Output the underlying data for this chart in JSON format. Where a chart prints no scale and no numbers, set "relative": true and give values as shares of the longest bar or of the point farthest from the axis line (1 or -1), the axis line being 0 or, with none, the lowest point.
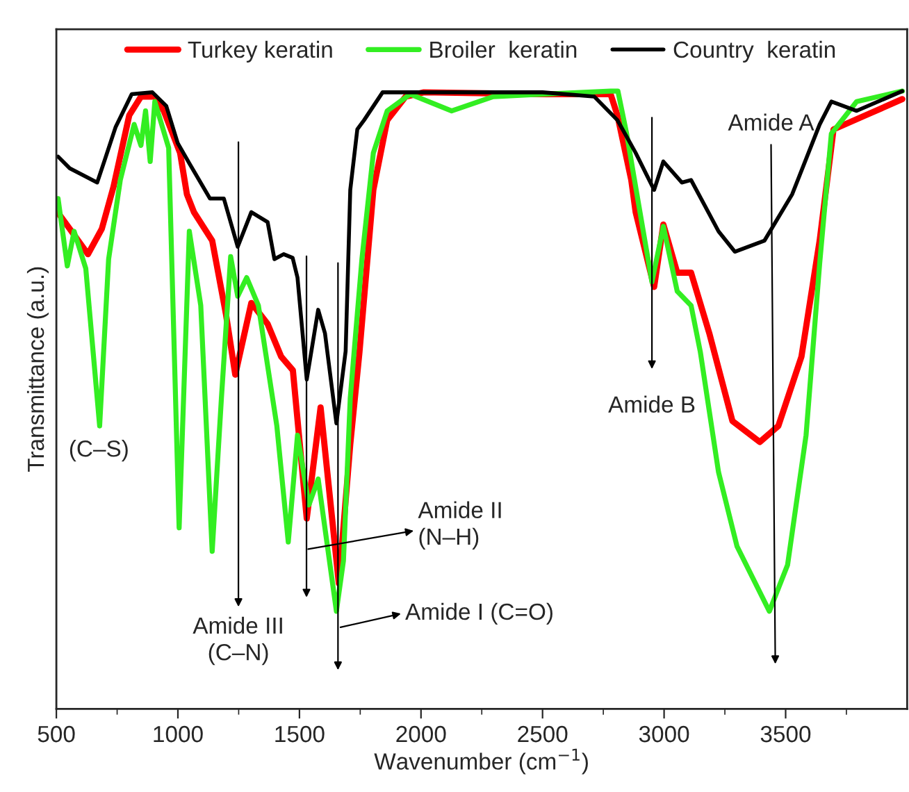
{
  "chart_data": {
    "type": "line",
    "relative": true,
    "xlabel": "Wavenumber (cm$^{−1}$)",
    "ylabel": "Transmittance (a.u.)",
    "xlim": [
      500,
      4000
    ],
    "xticks": [
      500,
      {
        "value": 750,
        "label": null
      },
      1000,
      {
        "value": 1250,
        "label": null
      },
      1500,
      {
        "value": 1750,
        "label": null
      },
      2000,
      {
        "value": 2250,
        "label": null
      },
      2500,
      {
        "value": 2750,
        "label": null
      },
      3000,
      {
        "value": 3250,
        "label": null
      },
      3500,
      {
        "value": 3750,
        "label": null
      }
    ],
    "legend": "top",
    "grid": false,
    "marker": "none",
    "line_style": "solid",
    "series": [
      {
        "name": "Turkey keratin",
        "color": "#ff0000",
        "x": [
          507,
          555,
          630,
          687,
          735,
          800,
          848,
          905,
          942,
          1009,
          1037,
          1066,
          1141,
          1198,
          1236,
          1302,
          1369,
          1425,
          1473,
          1530,
          1587,
          1662,
          1709,
          1747,
          1804,
          1861,
          1937,
          2012,
          2500,
          2780,
          2808,
          2865,
          2883,
          2940,
          2959,
          2997,
          3054,
          3111,
          3186,
          3281,
          3394,
          3470,
          3565,
          3640,
          3697,
          3830,
          3980
        ],
        "values": [
          0.803,
          0.777,
          0.736,
          0.777,
          0.845,
          0.961,
          0.991,
          0.991,
          0.968,
          0.9,
          0.833,
          0.804,
          0.758,
          0.638,
          0.541,
          0.657,
          0.623,
          0.57,
          0.548,
          0.308,
          0.488,
          0.203,
          0.428,
          0.578,
          0.84,
          0.953,
          0.991,
          0.998,
          0.995,
          0.995,
          0.961,
          0.856,
          0.804,
          0.713,
          0.683,
          0.784,
          0.706,
          0.706,
          0.608,
          0.466,
          0.432,
          0.458,
          0.57,
          0.758,
          0.938,
          0.961,
          0.987
        ]
      },
      {
        "name": "Broiler  keratin",
        "color": "#33ee22",
        "x": [
          507,
          545,
          573,
          621,
          678,
          715,
          763,
          820,
          848,
          867,
          886,
          905,
          962,
          1005,
          1047,
          1094,
          1141,
          1179,
          1217,
          1246,
          1283,
          1331,
          1407,
          1454,
          1492,
          1539,
          1577,
          1652,
          1681,
          1709,
          1757,
          1804,
          1861,
          1956,
          2126,
          2297,
          2500,
          2780,
          2810,
          2846,
          2883,
          2950,
          2997,
          3054,
          3111,
          3149,
          3224,
          3300,
          3433,
          3508,
          3584,
          3640,
          3688,
          3792,
          3980
        ],
        "values": [
          0.826,
          0.717,
          0.773,
          0.713,
          0.458,
          0.728,
          0.856,
          0.946,
          0.912,
          0.968,
          0.886,
          0.983,
          0.908,
          0.293,
          0.773,
          0.653,
          0.255,
          0.503,
          0.732,
          0.668,
          0.698,
          0.653,
          0.458,
          0.27,
          0.443,
          0.33,
          0.372,
          0.158,
          0.24,
          0.503,
          0.728,
          0.9,
          0.968,
          0.995,
          0.968,
          0.991,
          0.995,
          1.0,
          1.0,
          0.931,
          0.845,
          0.691,
          0.781,
          0.676,
          0.653,
          0.578,
          0.383,
          0.263,
          0.158,
          0.233,
          0.443,
          0.721,
          0.931,
          0.983,
          1.0
        ]
      },
      {
        "name": "Country  keratin",
        "color": "#000000",
        "x": [
          507,
          555,
          668,
          697,
          744,
          810,
          895,
          952,
          999,
          1047,
          1132,
          1189,
          1246,
          1302,
          1369,
          1397,
          1435,
          1472,
          1492,
          1530,
          1577,
          1605,
          1652,
          1690,
          1709,
          1738,
          1766,
          1842,
          2500,
          2713,
          2808,
          2883,
          2959,
          2997,
          3073,
          3111,
          3224,
          3291,
          3413,
          3527,
          3640,
          3688,
          3792,
          3980
        ],
        "values": [
          0.894,
          0.875,
          0.852,
          0.886,
          0.942,
          0.995,
          0.998,
          0.976,
          0.916,
          0.883,
          0.826,
          0.826,
          0.748,
          0.804,
          0.788,
          0.728,
          0.736,
          0.73,
          0.698,
          0.533,
          0.646,
          0.608,
          0.462,
          0.579,
          0.84,
          0.938,
          0.953,
          0.998,
          0.998,
          0.991,
          0.953,
          0.9,
          0.84,
          0.886,
          0.852,
          0.856,
          0.773,
          0.74,
          0.758,
          0.833,
          0.946,
          0.983,
          0.968,
          1.0
        ]
      }
    ],
    "annotations": [
      "(C–S)",
      "Amide III\n(C–N)",
      "Amide II\n(N–H)",
      "Amide I (C=O)",
      "Amide B",
      "Amide A"
    ]
  }
}
